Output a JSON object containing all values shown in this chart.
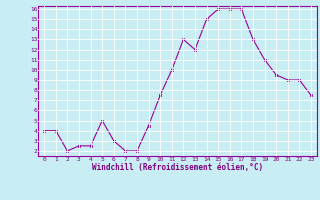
{
  "x": [
    0,
    1,
    2,
    3,
    4,
    5,
    6,
    7,
    8,
    9,
    10,
    11,
    12,
    13,
    14,
    15,
    16,
    17,
    18,
    19,
    20,
    21,
    22,
    23
  ],
  "y": [
    4,
    4,
    2,
    2.5,
    2.5,
    5,
    3,
    2,
    2,
    4.5,
    7.5,
    10,
    13,
    12,
    15,
    16,
    16,
    16,
    13,
    11,
    9.5,
    9,
    9,
    7.5
  ],
  "line_color": "#990099",
  "marker_color": "#990099",
  "bg_color": "#c8eef4",
  "grid_color": "#ffffff",
  "xlabel": "Windchill (Refroidissement éolien,°C)",
  "xlabel_color": "#800080",
  "tick_color": "#800080",
  "ylim_min": 2,
  "ylim_max": 16,
  "xlim_min": 0,
  "xlim_max": 23,
  "yticks": [
    2,
    3,
    4,
    5,
    6,
    7,
    8,
    9,
    10,
    11,
    12,
    13,
    14,
    15,
    16
  ],
  "xticks": [
    0,
    1,
    2,
    3,
    4,
    5,
    6,
    7,
    8,
    9,
    10,
    11,
    12,
    13,
    14,
    15,
    16,
    17,
    18,
    19,
    20,
    21,
    22,
    23
  ]
}
